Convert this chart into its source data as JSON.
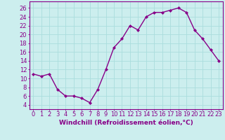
{
  "x": [
    0,
    1,
    2,
    3,
    4,
    5,
    6,
    7,
    8,
    9,
    10,
    11,
    12,
    13,
    14,
    15,
    16,
    17,
    18,
    19,
    20,
    21,
    22,
    23
  ],
  "y": [
    11,
    10.5,
    11,
    7.5,
    6,
    6,
    5.5,
    4.5,
    7.5,
    12,
    17,
    19,
    22,
    21,
    24,
    25,
    25,
    25.5,
    26,
    25,
    21,
    19,
    16.5,
    14
  ],
  "line_color": "#880088",
  "marker": "D",
  "marker_size": 2.0,
  "bg_color": "#cceeee",
  "grid_color": "#aadddd",
  "xlabel": "Windchill (Refroidissement éolien,°C)",
  "xlabel_fontsize": 6.5,
  "xtick_labels": [
    "0",
    "1",
    "2",
    "3",
    "4",
    "5",
    "6",
    "7",
    "8",
    "9",
    "10",
    "11",
    "12",
    "13",
    "14",
    "15",
    "16",
    "17",
    "18",
    "19",
    "20",
    "21",
    "22",
    "23"
  ],
  "ytick_values": [
    4,
    6,
    8,
    10,
    12,
    14,
    16,
    18,
    20,
    22,
    24,
    26
  ],
  "ylim": [
    3.0,
    27.5
  ],
  "xlim": [
    -0.5,
    23.5
  ],
  "tick_fontsize": 6.0,
  "linewidth": 1.0
}
